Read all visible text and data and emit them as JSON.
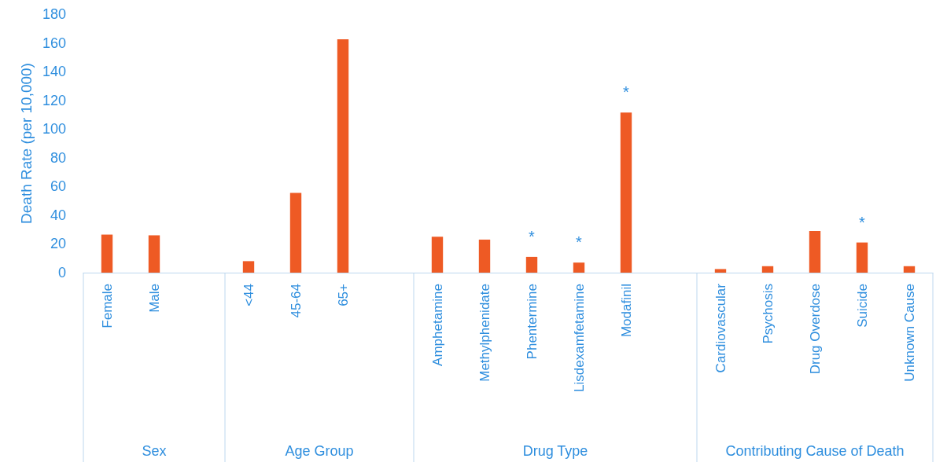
{
  "chart_data": {
    "type": "bar",
    "ylabel": "Death Rate (per 10,000)",
    "categories": [
      "Female",
      "Male",
      null,
      "<44",
      "45-64",
      "65+",
      null,
      "Amphetamine",
      "Methylphenidate",
      "Phentermine",
      "Lisdexamfetamine",
      "Modafinil",
      null,
      "Cardiovascular",
      "Psychosis",
      "Drug Overdose",
      "Suicide",
      "Unknown Cause"
    ],
    "values": [
      26.5,
      26,
      null,
      8,
      55.5,
      162.5,
      null,
      25,
      23,
      11,
      7,
      111.5,
      null,
      2.5,
      4.5,
      29,
      21,
      4.5
    ],
    "color": "#ee5a24",
    "ylim": [
      0,
      180
    ],
    "yticks": [
      0,
      20,
      40,
      60,
      80,
      100,
      120,
      140,
      160,
      180
    ],
    "grid": false,
    "annotations": [
      "Sex",
      "Age Group",
      "Drug Type",
      "Contributing Cause of Death",
      {
        "text": "*",
        "x": "Phentermine",
        "y": 11
      },
      {
        "text": "*",
        "x": "Lisdexamfetamine",
        "y": 7
      },
      {
        "text": "*",
        "x": "Modafinil",
        "y": 111.5
      },
      {
        "text": "*",
        "x": "Suicide",
        "y": 21
      }
    ]
  }
}
